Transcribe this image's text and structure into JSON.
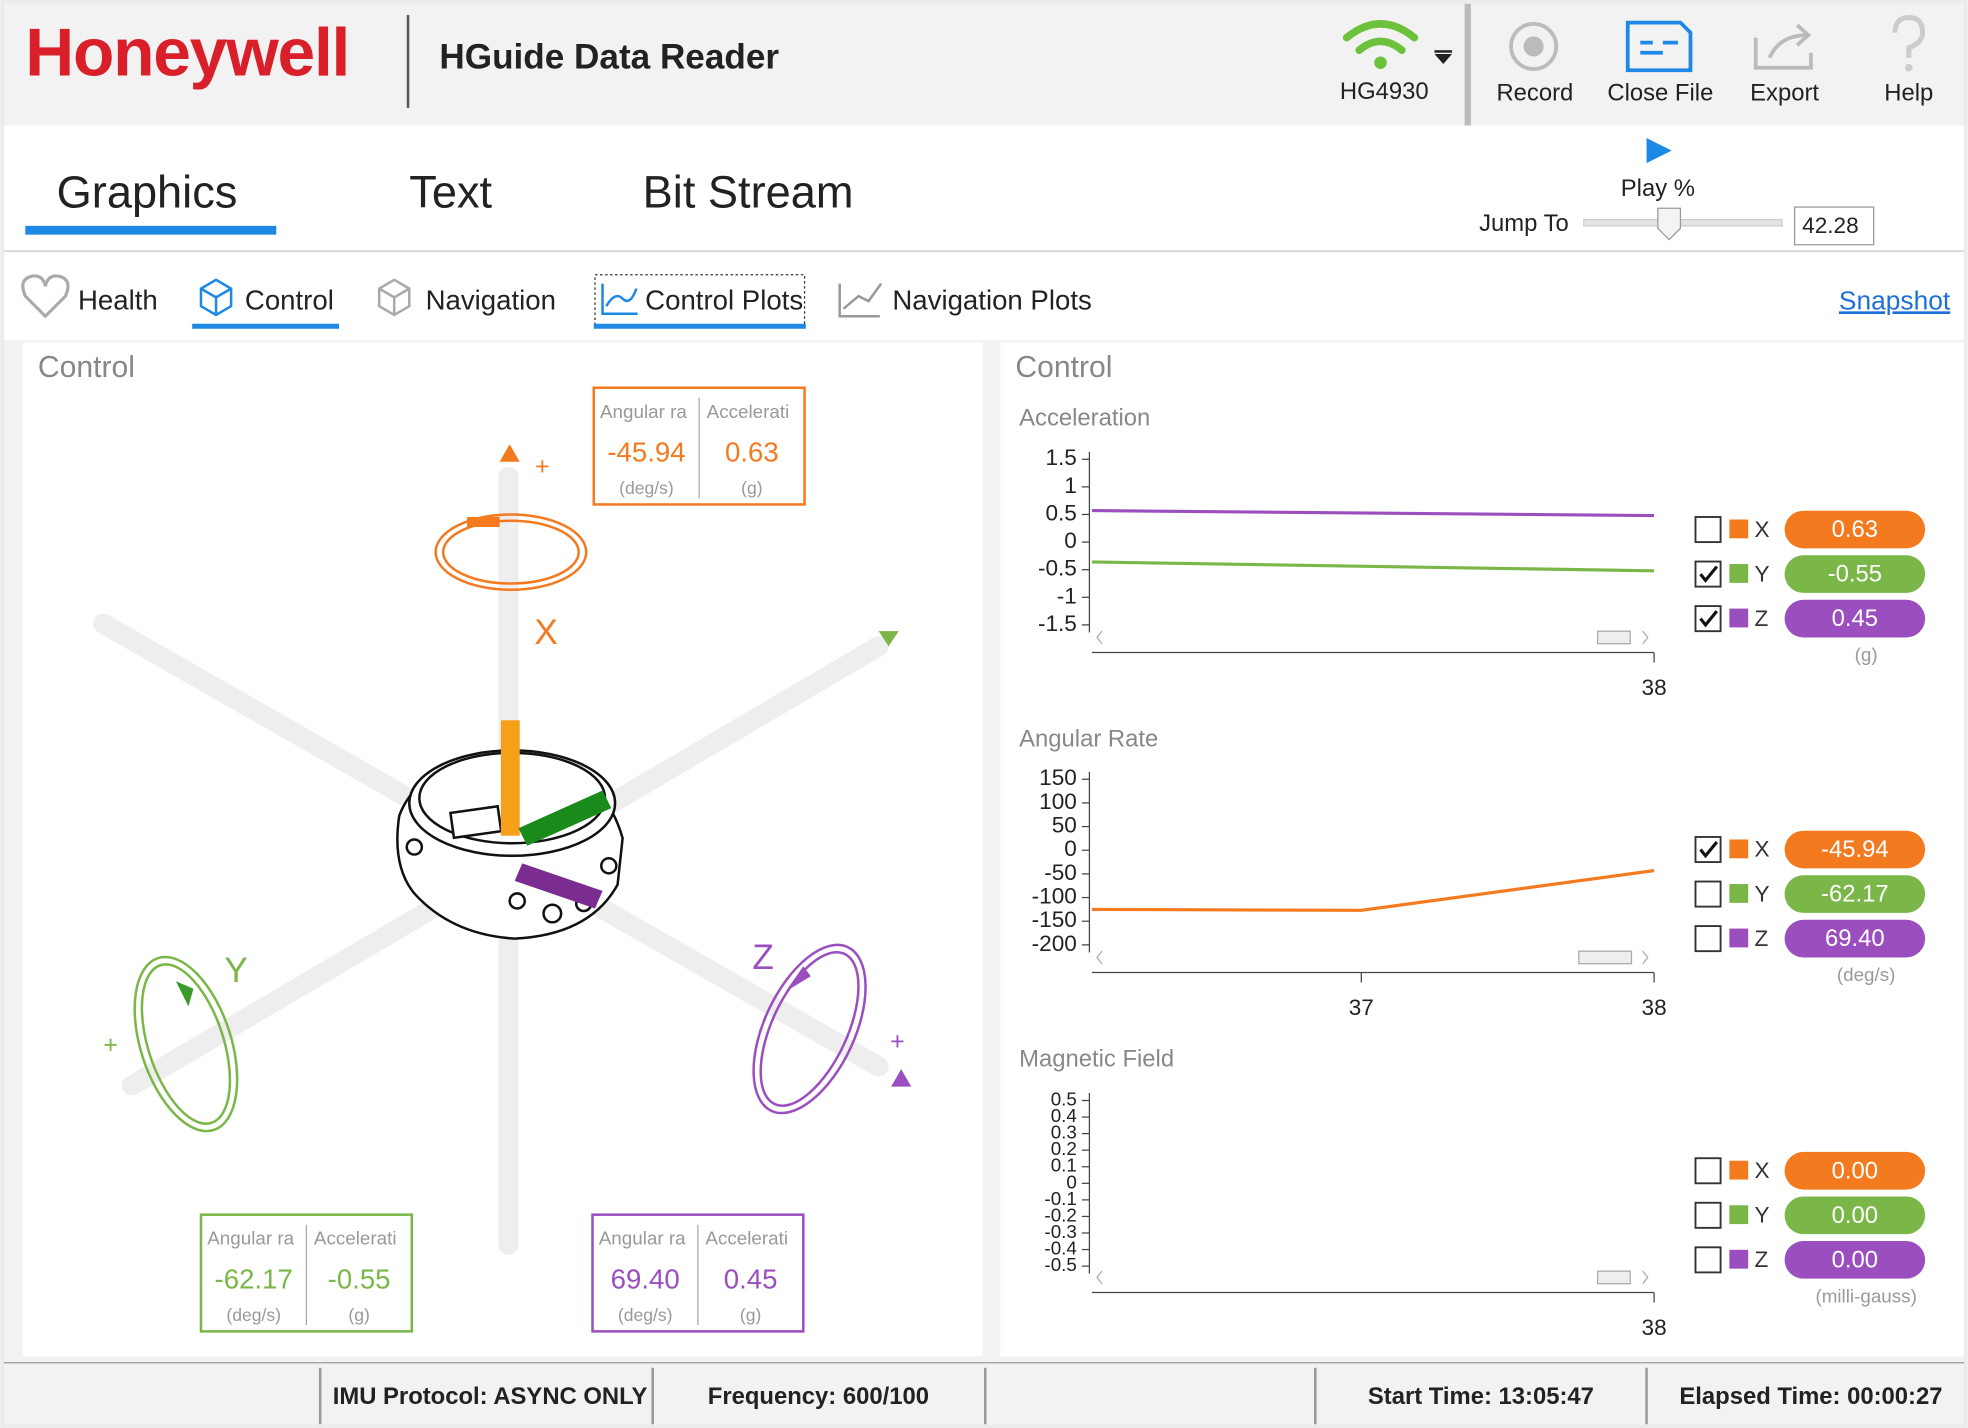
{
  "header": {
    "logo": "Honeywell",
    "app_title": "HGuide Data Reader",
    "device": "HG4930",
    "buttons": [
      "Record",
      "Close File",
      "Export",
      "Help"
    ]
  },
  "tabs": [
    "Graphics",
    "Text",
    "Bit Stream"
  ],
  "playback": {
    "play_label": "Play %",
    "jump_label": "Jump To",
    "jump_value": "42.28"
  },
  "subtabs": [
    "Health",
    "Control",
    "Navigation",
    "Control Plots",
    "Navigation Plots"
  ],
  "snapshot": "Snapshot",
  "left_panel": {
    "title": "Control",
    "axis_labels": [
      "X",
      "Y",
      "Z"
    ],
    "plus": "+",
    "readouts": [
      {
        "headers": [
          "Angular ra",
          "Accelerati"
        ],
        "values": [
          "-45.94",
          "0.63"
        ],
        "units": [
          "(deg/s)",
          "(g)"
        ]
      },
      {
        "headers": [
          "Angular ra",
          "Accelerati"
        ],
        "values": [
          "-62.17",
          "-0.55"
        ],
        "units": [
          "(deg/s)",
          "(g)"
        ]
      },
      {
        "headers": [
          "Angular ra",
          "Accelerati"
        ],
        "values": [
          "69.40",
          "0.45"
        ],
        "units": [
          "(deg/s)",
          "(g)"
        ]
      }
    ]
  },
  "right_panel": {
    "title": "Control",
    "plots": [
      {
        "title": "Acceleration",
        "ylim": [
          -1.5,
          1.5
        ],
        "yticks": [
          1.5,
          1,
          0.5,
          0,
          -0.5,
          -1,
          -1.5
        ],
        "xlim": [
          36.08,
          38
        ],
        "xticks": [
          38
        ],
        "unit": "(g)",
        "series": [
          {
            "name": "X",
            "color": "#f47a20",
            "checked": false,
            "value": "0.63"
          },
          {
            "name": "Y",
            "color": "#7ab648",
            "checked": true,
            "value": "-0.55",
            "x": [
              36.08,
              38
            ],
            "values": [
              -0.36,
              -0.52
            ]
          },
          {
            "name": "Z",
            "color": "#9b4fbf",
            "checked": true,
            "value": "0.45",
            "x": [
              36.08,
              38
            ],
            "values": [
              0.57,
              0.48
            ]
          }
        ]
      },
      {
        "title": "Angular Rate",
        "ylim": [
          -200,
          150
        ],
        "yticks": [
          150,
          100,
          50,
          0,
          -50,
          -100,
          -150,
          -200
        ],
        "xlim": [
          36.08,
          38
        ],
        "xticks": [
          37,
          38
        ],
        "unit": "(deg/s)",
        "series": [
          {
            "name": "X",
            "color": "#f47a20",
            "checked": true,
            "value": "-45.94",
            "x": [
              36.08,
              37,
              38
            ],
            "values": [
              -125,
              -127,
              -43
            ]
          },
          {
            "name": "Y",
            "color": "#7ab648",
            "checked": false,
            "value": "-62.17"
          },
          {
            "name": "Z",
            "color": "#9b4fbf",
            "checked": false,
            "value": "69.40"
          }
        ]
      },
      {
        "title": "Magnetic Field",
        "ylim": [
          -0.5,
          0.5
        ],
        "yticks": [
          0.5,
          0.4,
          0.3,
          0.2,
          0.1,
          0,
          -0.1,
          -0.2,
          -0.3,
          -0.4,
          -0.5
        ],
        "xlim": [
          36.08,
          38
        ],
        "xticks": [
          38
        ],
        "unit": "(milli-gauss)",
        "series": [
          {
            "name": "X",
            "color": "#f47a20",
            "checked": false,
            "value": "0.00"
          },
          {
            "name": "Y",
            "color": "#7ab648",
            "checked": false,
            "value": "0.00"
          },
          {
            "name": "Z",
            "color": "#9b4fbf",
            "checked": false,
            "value": "0.00"
          }
        ]
      }
    ]
  },
  "status": [
    "IMU Protocol: ASYNC ONLY",
    "Frequency: 600/100",
    "Start Time: 13:05:47",
    "Elapsed Time: 00:00:27"
  ]
}
